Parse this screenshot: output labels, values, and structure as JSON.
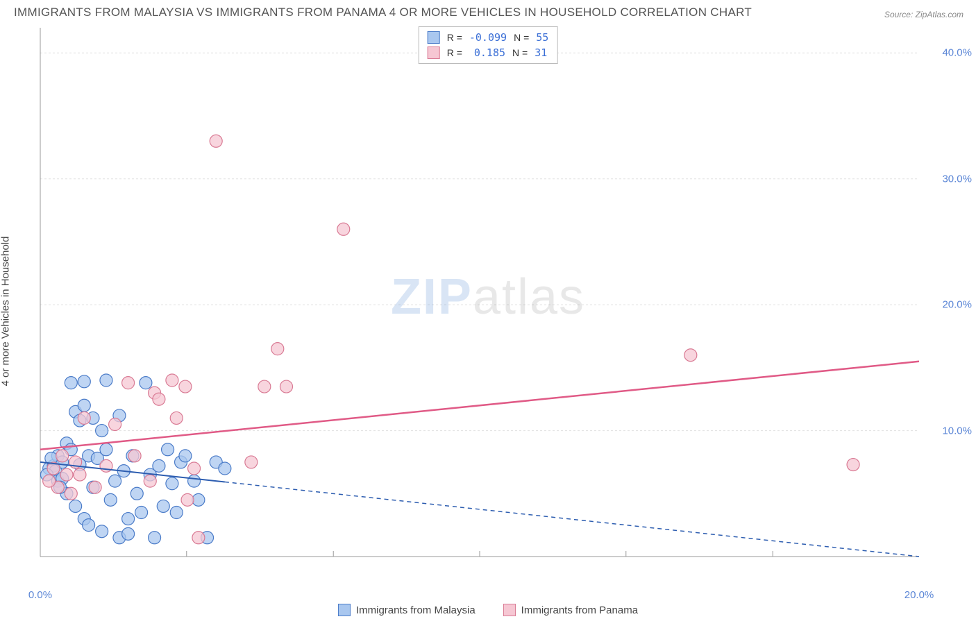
{
  "title": "IMMIGRANTS FROM MALAYSIA VS IMMIGRANTS FROM PANAMA 4 OR MORE VEHICLES IN HOUSEHOLD CORRELATION CHART",
  "source": "Source: ZipAtlas.com",
  "ylabel": "4 or more Vehicles in Household",
  "watermark_zip": "ZIP",
  "watermark_atlas": "atlas",
  "chart": {
    "type": "scatter",
    "xlim": [
      0,
      20
    ],
    "ylim": [
      0,
      42
    ],
    "xtick_labels": [
      "0.0%",
      "20.0%"
    ],
    "xtick_positions": [
      0,
      20
    ],
    "xtick_minor": [
      3.33,
      6.67,
      10,
      13.33,
      16.67
    ],
    "ytick_labels": [
      "10.0%",
      "20.0%",
      "30.0%",
      "40.0%"
    ],
    "ytick_positions": [
      10,
      20,
      30,
      40
    ],
    "grid_color": "#e0e0e0",
    "grid_dash": "3,3",
    "axis_color": "#999",
    "background_color": "#ffffff",
    "marker_radius": 9,
    "marker_stroke_width": 1.2,
    "series": [
      {
        "key": "malaysia",
        "label": "Immigrants from Malaysia",
        "fill": "#a9c7ef",
        "stroke": "#4a7bc8",
        "R": "-0.099",
        "N": "55",
        "trend": {
          "y_at_x0": 7.5,
          "y_at_x20": 0.0,
          "color": "#2d5db0",
          "width": 2,
          "dash_after_x": 4.2
        },
        "points": [
          [
            0.2,
            7.0
          ],
          [
            0.3,
            7.2
          ],
          [
            0.35,
            6.8
          ],
          [
            0.4,
            8.0
          ],
          [
            0.4,
            6.0
          ],
          [
            0.5,
            7.5
          ],
          [
            0.5,
            6.2
          ],
          [
            0.6,
            9.0
          ],
          [
            0.6,
            5.0
          ],
          [
            0.7,
            13.8
          ],
          [
            0.7,
            8.5
          ],
          [
            0.8,
            11.5
          ],
          [
            0.8,
            4.0
          ],
          [
            0.9,
            10.8
          ],
          [
            0.9,
            7.3
          ],
          [
            1.0,
            13.9
          ],
          [
            1.0,
            12.0
          ],
          [
            1.0,
            3.0
          ],
          [
            1.1,
            8.0
          ],
          [
            1.1,
            2.5
          ],
          [
            1.2,
            11.0
          ],
          [
            1.2,
            5.5
          ],
          [
            1.3,
            7.8
          ],
          [
            1.4,
            10.0
          ],
          [
            1.4,
            2.0
          ],
          [
            1.5,
            14.0
          ],
          [
            1.5,
            8.5
          ],
          [
            1.6,
            4.5
          ],
          [
            1.7,
            6.0
          ],
          [
            1.8,
            11.2
          ],
          [
            1.8,
            1.5
          ],
          [
            1.9,
            6.8
          ],
          [
            2.0,
            3.0
          ],
          [
            2.0,
            1.8
          ],
          [
            2.1,
            8.0
          ],
          [
            2.2,
            5.0
          ],
          [
            2.3,
            3.5
          ],
          [
            2.4,
            13.8
          ],
          [
            2.5,
            6.5
          ],
          [
            2.6,
            1.5
          ],
          [
            2.7,
            7.2
          ],
          [
            2.8,
            4.0
          ],
          [
            2.9,
            8.5
          ],
          [
            3.0,
            5.8
          ],
          [
            3.1,
            3.5
          ],
          [
            3.2,
            7.5
          ],
          [
            3.3,
            8.0
          ],
          [
            3.5,
            6.0
          ],
          [
            3.6,
            4.5
          ],
          [
            3.8,
            1.5
          ],
          [
            4.0,
            7.5
          ],
          [
            4.2,
            7.0
          ],
          [
            0.15,
            6.5
          ],
          [
            0.25,
            7.8
          ],
          [
            0.45,
            5.5
          ]
        ]
      },
      {
        "key": "panama",
        "label": "Immigrants from Panama",
        "fill": "#f6c7d3",
        "stroke": "#d97a94",
        "R": "0.185",
        "N": "31",
        "trend": {
          "y_at_x0": 8.5,
          "y_at_x20": 15.5,
          "color": "#e05a86",
          "width": 2.5,
          "dash_after_x": null
        },
        "points": [
          [
            0.3,
            7.0
          ],
          [
            0.4,
            5.5
          ],
          [
            0.5,
            8.0
          ],
          [
            0.6,
            6.5
          ],
          [
            0.7,
            5.0
          ],
          [
            0.8,
            7.5
          ],
          [
            1.0,
            11.0
          ],
          [
            1.25,
            5.5
          ],
          [
            1.5,
            7.2
          ],
          [
            1.7,
            10.5
          ],
          [
            2.0,
            13.8
          ],
          [
            2.15,
            8.0
          ],
          [
            2.5,
            6.0
          ],
          [
            2.6,
            13.0
          ],
          [
            2.7,
            12.5
          ],
          [
            3.0,
            14.0
          ],
          [
            3.1,
            11.0
          ],
          [
            3.3,
            13.5
          ],
          [
            3.35,
            4.5
          ],
          [
            3.5,
            7.0
          ],
          [
            3.6,
            1.5
          ],
          [
            4.0,
            33.0
          ],
          [
            4.8,
            7.5
          ],
          [
            5.1,
            13.5
          ],
          [
            5.4,
            16.5
          ],
          [
            5.6,
            13.5
          ],
          [
            6.9,
            26.0
          ],
          [
            14.8,
            16.0
          ],
          [
            18.5,
            7.3
          ],
          [
            0.2,
            6.0
          ],
          [
            0.9,
            6.5
          ]
        ]
      }
    ]
  },
  "stats_legend": {
    "r_label": "R =",
    "n_label": "N ="
  }
}
